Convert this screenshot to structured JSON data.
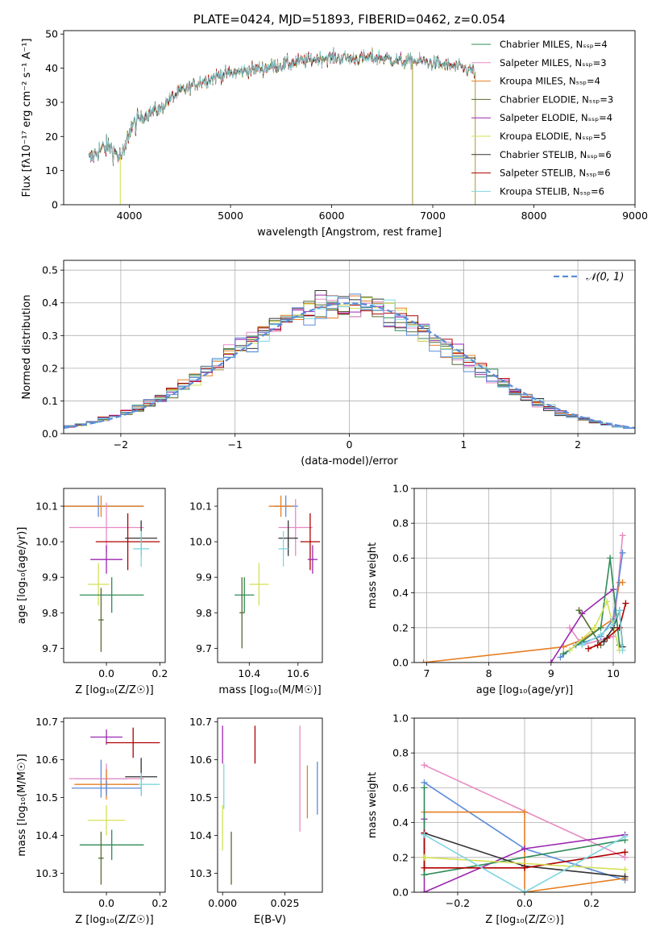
{
  "colors": {
    "chabrier_miles": "#2e8b57",
    "salpeter_miles": "#e78ac3",
    "kroupa_miles": "#e67e22",
    "chabrier_elodie": "#556b2f",
    "salpeter_elodie": "#9c27b0",
    "kroupa_elodie": "#d4e157",
    "chabrier_stelib": "#333333",
    "salpeter_stelib": "#b00000",
    "kroupa_stelib": "#7fd6e0",
    "normal": "#5b8bd9",
    "blue": "#5b8bd9"
  },
  "chart_data": [
    {
      "id": "spectrum",
      "type": "line",
      "title": "PLATE=0424, MJD=51893, FIBERID=0462, z=0.054",
      "xlabel": "wavelength [Angstrom, rest frame]",
      "ylabel": "Flux [fλ10⁻¹⁷ erg cm⁻² s⁻¹ A⁻¹]",
      "xlim": [
        3350,
        9000
      ],
      "ylim": [
        0,
        51
      ],
      "xticks": [
        4000,
        5000,
        6000,
        7000,
        8000,
        9000
      ],
      "yticks": [
        0,
        10,
        20,
        30,
        40,
        50
      ],
      "legend_placement": "upper-right",
      "legend": [
        "Chabrier MILES, Nₛₛₚ=4",
        "Salpeter MILES, Nₛₛₚ=3",
        "Kroupa MILES, Nₛₛₚ=4",
        "Chabrier ELODIE, Nₛₛₚ=3",
        "Salpeter ELODIE, Nₛₛₚ=4",
        "Kroupa ELODIE, Nₛₛₚ=5",
        "Chabrier STELIB, Nₛₛₚ=6",
        "Salpeter STELIB, Nₛₛₚ=6",
        "Kroupa STELIB, Nₛₛₚ=6"
      ],
      "continuum": {
        "wavelength": [
          3600,
          3700,
          3800,
          3900,
          3950,
          4000,
          4100,
          4200,
          4300,
          4400,
          4500,
          4700,
          4900,
          5100,
          5300,
          5500,
          5700,
          5900,
          6100,
          6300,
          6500,
          6700,
          6900,
          7100,
          7300,
          7420
        ],
        "flux": [
          13,
          16,
          17,
          14,
          15,
          22,
          25,
          27,
          28,
          31,
          33,
          36,
          38,
          39,
          40,
          41,
          42,
          43,
          43,
          43,
          43,
          42,
          42,
          41,
          40,
          39
        ]
      },
      "drops": [
        {
          "x": 3910,
          "y": 0
        },
        {
          "x": 6800,
          "y": 0
        },
        {
          "x": 7420,
          "y": 0
        }
      ]
    },
    {
      "id": "residuals",
      "type": "histogram",
      "xlabel": "(data-model)/error",
      "ylabel": "Normed distribution",
      "xlim": [
        -2.5,
        2.5
      ],
      "ylim": [
        0,
        0.53
      ],
      "xticks": [
        -2,
        -1,
        0,
        1,
        2
      ],
      "yticks": [
        0.0,
        0.1,
        0.2,
        0.3,
        0.4,
        0.5
      ],
      "grid": true,
      "legend_placement": "upper-right",
      "legend": [
        "𝒩(0, 1)"
      ],
      "bin_width": 0.1,
      "normal_curve": {
        "mean": 0,
        "sigma": 1
      }
    },
    {
      "id": "age-vs-Z",
      "type": "errorbar",
      "xlabel": "Z [log₁₀(Z/Z☉)]",
      "ylabel": "age  [log₁₀(age/yr)]",
      "xlim": [
        -0.16,
        0.22
      ],
      "ylim": [
        9.66,
        10.15
      ],
      "xticks": [
        0.0,
        0.2
      ],
      "yticks": [
        9.7,
        9.8,
        9.9,
        10.0,
        10.1
      ],
      "points": [
        {
          "s": "blue",
          "x": -0.03,
          "y": 10.1,
          "xe": 0.17,
          "ye": 0.03
        },
        {
          "s": "kroupa_miles",
          "x": -0.02,
          "y": 10.1,
          "xe": 0.16,
          "ye": 0.03
        },
        {
          "s": "salpeter_miles",
          "x": 0.0,
          "y": 10.04,
          "xe": 0.14,
          "ye": 0.07
        },
        {
          "s": "chabrier_stelib",
          "x": 0.13,
          "y": 10.01,
          "xe": 0.06,
          "ye": 0.05
        },
        {
          "s": "salpeter_stelib",
          "x": 0.08,
          "y": 10.0,
          "xe": 0.12,
          "ye": 0.08
        },
        {
          "s": "kroupa_stelib",
          "x": 0.13,
          "y": 9.98,
          "xe": 0.03,
          "ye": 0.05
        },
        {
          "s": "salpeter_elodie",
          "x": 0.0,
          "y": 9.95,
          "xe": 0.06,
          "ye": 0.04
        },
        {
          "s": "kroupa_elodie",
          "x": -0.03,
          "y": 9.88,
          "xe": 0.04,
          "ye": 0.06
        },
        {
          "s": "chabrier_miles",
          "x": 0.02,
          "y": 9.85,
          "xe": 0.12,
          "ye": 0.05
        },
        {
          "s": "chabrier_elodie",
          "x": -0.02,
          "y": 9.78,
          "xe": 0.01,
          "ye": 0.09
        }
      ]
    },
    {
      "id": "age-vs-mass",
      "type": "errorbar",
      "xlabel": "mass [log₁₀(M/M☉)]",
      "ylabel": "",
      "xlim": [
        10.27,
        10.7
      ],
      "ylim": [
        9.66,
        10.15
      ],
      "xticks": [
        10.4,
        10.6
      ],
      "yticks": [
        9.7,
        9.8,
        9.9,
        10.0,
        10.1
      ],
      "points": [
        {
          "s": "blue",
          "x": 10.55,
          "y": 10.1,
          "xe": 0.05,
          "ye": 0.03
        },
        {
          "s": "kroupa_miles",
          "x": 10.53,
          "y": 10.1,
          "xe": 0.05,
          "ye": 0.03
        },
        {
          "s": "salpeter_miles",
          "x": 10.59,
          "y": 10.04,
          "xe": 0.07,
          "ye": 0.08
        },
        {
          "s": "chabrier_stelib",
          "x": 10.56,
          "y": 10.01,
          "xe": 0.04,
          "ye": 0.05
        },
        {
          "s": "salpeter_stelib",
          "x": 10.65,
          "y": 10.0,
          "xe": 0.04,
          "ye": 0.08
        },
        {
          "s": "kroupa_stelib",
          "x": 10.54,
          "y": 9.98,
          "xe": 0.02,
          "ye": 0.05
        },
        {
          "s": "salpeter_elodie",
          "x": 10.66,
          "y": 9.95,
          "xe": 0.02,
          "ye": 0.04
        },
        {
          "s": "kroupa_elodie",
          "x": 10.44,
          "y": 9.88,
          "xe": 0.04,
          "ye": 0.06
        },
        {
          "s": "chabrier_miles",
          "x": 10.38,
          "y": 9.85,
          "xe": 0.04,
          "ye": 0.05
        },
        {
          "s": "chabrier_elodie",
          "x": 10.37,
          "y": 9.8,
          "xe": 0.01,
          "ye": 0.1
        }
      ]
    },
    {
      "id": "weight-vs-age",
      "type": "line",
      "xlabel": "age  [log₁₀(age/yr)]",
      "ylabel": "mass weight",
      "xlim": [
        6.8,
        10.35
      ],
      "ylim": [
        0,
        1.0
      ],
      "xticks": [
        7,
        8,
        9,
        10
      ],
      "yticks": [
        0.0,
        0.2,
        0.4,
        0.6,
        0.8,
        1.0
      ],
      "grid": true,
      "series": [
        {
          "s": "kroupa_miles",
          "x": [
            6.95,
            9.2,
            9.5,
            10.0,
            10.1,
            10.15
          ],
          "y": [
            0.0,
            0.09,
            0.13,
            0.25,
            0.46,
            0.46
          ]
        },
        {
          "s": "salpeter_miles",
          "x": [
            9.3,
            9.5,
            10.0,
            10.15
          ],
          "y": [
            0.2,
            0.1,
            0.15,
            0.73
          ]
        },
        {
          "s": "blue",
          "x": [
            9.15,
            9.4,
            9.8,
            10.0,
            10.15
          ],
          "y": [
            0.03,
            0.1,
            0.15,
            0.25,
            0.63
          ]
        },
        {
          "s": "salpeter_elodie",
          "x": [
            9.0,
            9.5,
            10.0
          ],
          "y": [
            0.0,
            0.28,
            0.42
          ]
        },
        {
          "s": "chabrier_miles",
          "x": [
            9.2,
            9.5,
            9.8,
            9.95,
            10.1
          ],
          "y": [
            0.05,
            0.12,
            0.2,
            0.6,
            0.1
          ]
        },
        {
          "s": "chabrier_elodie",
          "x": [
            9.45,
            9.8
          ],
          "y": [
            0.3,
            0.1
          ]
        },
        {
          "s": "kroupa_elodie",
          "x": [
            9.3,
            9.7,
            9.9,
            10.1
          ],
          "y": [
            0.07,
            0.2,
            0.35,
            0.07
          ]
        },
        {
          "s": "salpeter_stelib",
          "x": [
            9.6,
            9.75,
            9.9,
            10.1,
            10.2
          ],
          "y": [
            0.08,
            0.1,
            0.14,
            0.2,
            0.34
          ]
        },
        {
          "s": "chabrier_stelib",
          "x": [
            9.85,
            10.0,
            10.1,
            10.15
          ],
          "y": [
            0.12,
            0.2,
            0.3,
            0.09
          ]
        },
        {
          "s": "kroupa_stelib",
          "x": [
            9.5,
            9.8,
            10.0,
            10.1,
            10.15
          ],
          "y": [
            0.1,
            0.16,
            0.22,
            0.3,
            0.07
          ]
        }
      ]
    },
    {
      "id": "mass-vs-Z",
      "type": "errorbar",
      "xlabel": "Z [log₁₀(Z/Z☉)]",
      "ylabel": "mass [log₁₀(M/M☉)]",
      "xlim": [
        -0.16,
        0.22
      ],
      "ylim": [
        10.25,
        10.71
      ],
      "xticks": [
        0.0,
        0.2
      ],
      "yticks": [
        10.3,
        10.4,
        10.5,
        10.6,
        10.7
      ],
      "points": [
        {
          "s": "salpeter_elodie",
          "x": 0.0,
          "y": 10.66,
          "xe": 0.06,
          "ye": 0.02
        },
        {
          "s": "salpeter_stelib",
          "x": 0.1,
          "y": 10.645,
          "xe": 0.1,
          "ye": 0.04
        },
        {
          "s": "blue",
          "x": -0.02,
          "y": 10.55,
          "xe": 0.1,
          "ye": 0.05
        },
        {
          "s": "chabrier_stelib",
          "x": 0.13,
          "y": 10.555,
          "xe": 0.06,
          "ye": 0.05
        },
        {
          "s": "salpeter_miles",
          "x": 0.0,
          "y": 10.55,
          "xe": 0.14,
          "ye": 0.04
        },
        {
          "s": "kroupa_stelib",
          "x": 0.13,
          "y": 10.535,
          "xe": 0.07,
          "ye": 0.03
        },
        {
          "s": "kroupa_miles",
          "x": 0.0,
          "y": 10.535,
          "xe": 0.12,
          "ye": 0.04
        },
        {
          "s": "blue",
          "x": 0.0,
          "y": 10.525,
          "xe": 0.13,
          "ye": 0.02
        },
        {
          "s": "kroupa_elodie",
          "x": 0.0,
          "y": 10.44,
          "xe": 0.07,
          "ye": 0.04
        },
        {
          "s": "chabrier_miles",
          "x": 0.02,
          "y": 10.375,
          "xe": 0.12,
          "ye": 0.04
        },
        {
          "s": "chabrier_elodie",
          "x": -0.02,
          "y": 10.34,
          "xe": 0.01,
          "ye": 0.07
        }
      ]
    },
    {
      "id": "mass-vs-ebv",
      "type": "errorbar",
      "xlabel": "E(B-V)",
      "ylabel": "",
      "xlim": [
        -0.002,
        0.04
      ],
      "ylim": [
        10.25,
        10.71
      ],
      "xticks": [
        0.0,
        0.025
      ],
      "xtick_labels": [
        "0.000",
        "0.025"
      ],
      "yticks": [
        10.3,
        10.4,
        10.5,
        10.6,
        10.7
      ],
      "points": [
        {
          "s": "salpeter_elodie",
          "x": 0.0,
          "y": 10.64,
          "xe": 0,
          "ye": 0.05
        },
        {
          "s": "salpeter_stelib",
          "x": 0.013,
          "y": 10.64,
          "xe": 0,
          "ye": 0.05
        },
        {
          "s": "salpeter_miles",
          "x": 0.031,
          "y": 10.55,
          "xe": 0,
          "ye": 0.14
        },
        {
          "s": "kroupa_miles",
          "x": 0.034,
          "y": 10.515,
          "xe": 0,
          "ye": 0.07
        },
        {
          "s": "blue",
          "x": 0.038,
          "y": 10.525,
          "xe": 0,
          "ye": 0.07
        },
        {
          "s": "kroupa_stelib",
          "x": 0.0005,
          "y": 10.53,
          "xe": 0,
          "ye": 0.06
        },
        {
          "s": "kroupa_elodie",
          "x": 0.0,
          "y": 10.42,
          "xe": 0,
          "ye": 0.06
        },
        {
          "s": "chabrier_elodie",
          "x": 0.0035,
          "y": 10.34,
          "xe": 0,
          "ye": 0.07
        }
      ]
    },
    {
      "id": "weight-vs-Z",
      "type": "line",
      "xlabel": "Z [log₁₀(Z/Z☉)]",
      "ylabel": "mass weight",
      "xlim": [
        -0.33,
        0.33
      ],
      "ylim": [
        0,
        1.0
      ],
      "xticks": [
        -0.2,
        0.0,
        0.2
      ],
      "yticks": [
        0.0,
        0.2,
        0.4,
        0.6,
        0.8,
        1.0
      ],
      "grid": true,
      "series": [
        {
          "s": "salpeter_miles",
          "x": [
            -0.3,
            0.3
          ],
          "y": [
            0.73,
            0.2
          ]
        },
        {
          "s": "blue",
          "x": [
            -0.3,
            0.0,
            0.3
          ],
          "y": [
            0.63,
            0.25,
            0.07
          ]
        },
        {
          "s": "kroupa_miles",
          "x": [
            -0.3,
            0.0,
            0.0,
            0.3
          ],
          "y": [
            0.46,
            0.46,
            0.0,
            0.08
          ]
        },
        {
          "s": "salpeter_elodie",
          "x": [
            -0.3,
            -0.3,
            0.0,
            0.3
          ],
          "y": [
            0.42,
            0.0,
            0.25,
            0.33
          ]
        },
        {
          "s": "chabrier_miles",
          "x": [
            -0.3,
            -0.3,
            0.3
          ],
          "y": [
            0.6,
            0.1,
            0.3
          ]
        },
        {
          "s": "chabrier_stelib",
          "x": [
            -0.3,
            0.0,
            0.3
          ],
          "y": [
            0.34,
            0.15,
            0.09
          ]
        },
        {
          "s": "salpeter_stelib",
          "x": [
            -0.3,
            -0.3,
            0.0,
            0.3
          ],
          "y": [
            0.34,
            0.14,
            0.14,
            0.23
          ]
        },
        {
          "s": "kroupa_elodie",
          "x": [
            -0.3,
            0.3
          ],
          "y": [
            0.2,
            0.13
          ]
        },
        {
          "s": "kroupa_stelib",
          "x": [
            -0.3,
            0.0,
            0.3
          ],
          "y": [
            0.33,
            0.0,
            0.32
          ]
        }
      ]
    }
  ]
}
